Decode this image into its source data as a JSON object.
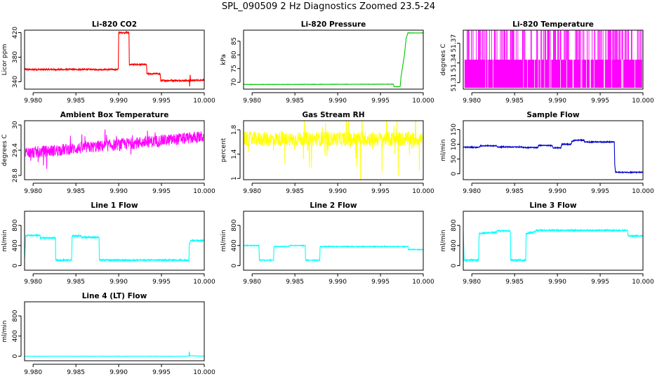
{
  "figure_title": "SPL_090509  2 Hz Diagnostics Zoomed 23.5-24",
  "colors": {
    "red": "#ff0000",
    "green": "#00c800",
    "magenta": "#ff00ff",
    "yellow": "#ffff00",
    "blue": "#0000cc",
    "cyan": "#00ffff"
  },
  "chart_data": [
    {
      "type": "line",
      "title": "Li-820 CO2",
      "ylabel": "Licor ppm",
      "color": "#ff0000",
      "xlim": [
        9.979,
        10.0
      ],
      "ylim": [
        328,
        424
      ],
      "yticks": [
        340,
        380,
        420
      ],
      "xticks": [
        9.98,
        9.985,
        9.99,
        9.995,
        10.0
      ],
      "noise": 1.2,
      "segments": [
        [
          9.979,
          360
        ],
        [
          9.98995,
          360
        ],
        [
          9.99,
          420
        ],
        [
          9.9912,
          420
        ],
        [
          9.99125,
          368
        ],
        [
          9.99325,
          368
        ],
        [
          9.9933,
          353
        ],
        [
          9.99485,
          353
        ],
        [
          9.9949,
          342
        ],
        [
          9.99825,
          342
        ],
        [
          9.9983,
          333
        ],
        [
          9.99835,
          352
        ],
        [
          9.9984,
          342
        ],
        [
          10.0,
          343
        ]
      ]
    },
    {
      "type": "line",
      "title": "Li-820 Pressure",
      "ylabel": "kPa",
      "color": "#00c800",
      "xlim": [
        9.979,
        10.0
      ],
      "ylim": [
        67.5,
        89
      ],
      "yticks": [
        70,
        75,
        80,
        85
      ],
      "xticks": [
        9.98,
        9.985,
        9.99,
        9.995,
        10.0
      ],
      "noise": 0.05,
      "segments": [
        [
          9.979,
          69.2
        ],
        [
          9.9965,
          69.3
        ],
        [
          9.9966,
          68.4
        ],
        [
          9.9973,
          68.4
        ],
        [
          9.9974,
          72
        ],
        [
          9.9978,
          80
        ],
        [
          9.998,
          86
        ],
        [
          9.9982,
          88
        ],
        [
          10.0,
          88
        ]
      ]
    },
    {
      "type": "stripes",
      "title": "Li-820 Temperature",
      "ylabel": "degrees C",
      "color": "#ff00ff",
      "xlim": [
        9.979,
        10.0
      ],
      "ylim": [
        51.3,
        51.39
      ],
      "yticks": [
        51.31,
        51.34,
        51.37
      ],
      "ytick_labels": [
        "51.31",
        "51.34",
        "51.37"
      ],
      "xticks": [
        9.98,
        9.985,
        9.99,
        9.995,
        10.0
      ],
      "band": [
        51.302,
        51.345
      ],
      "full": [
        51.302,
        51.39
      ]
    },
    {
      "type": "noise",
      "title": "Ambient Box Temperature",
      "ylabel": "degrees C",
      "color": "#ff00ff",
      "xlim": [
        9.979,
        10.0
      ],
      "ylim": [
        28.7,
        30.1
      ],
      "yticks": [
        28.8,
        29.4,
        30.0
      ],
      "xticks": [
        9.98,
        9.985,
        9.99,
        9.995,
        10.0
      ],
      "trend": [
        [
          9.979,
          29.33
        ],
        [
          10.0,
          29.72
        ]
      ],
      "amp": 0.14,
      "spike": 0.38
    },
    {
      "type": "noise",
      "title": "Gas Stream RH",
      "ylabel": "percent",
      "color": "#ffff00",
      "xlim": [
        9.979,
        10.0
      ],
      "ylim": [
        0.98,
        1.95
      ],
      "yticks": [
        1.0,
        1.4,
        1.8
      ],
      "xticks": [
        9.98,
        9.985,
        9.99,
        9.995,
        10.0
      ],
      "trend": [
        [
          9.979,
          1.65
        ],
        [
          10.0,
          1.65
        ]
      ],
      "amp": 0.12,
      "spike": 0.6
    },
    {
      "type": "line",
      "title": "Sample Flow",
      "ylabel": "ml/min",
      "color": "#0000cc",
      "xlim": [
        9.979,
        10.0
      ],
      "ylim": [
        -20,
        180
      ],
      "yticks": [
        0,
        50,
        100,
        150
      ],
      "xticks": [
        9.98,
        9.985,
        9.99,
        9.995,
        10.0
      ],
      "noise": 1.5,
      "segments": [
        [
          9.979,
          90
        ],
        [
          9.9809,
          90
        ],
        [
          9.981,
          95
        ],
        [
          9.9829,
          95
        ],
        [
          9.983,
          91
        ],
        [
          9.9859,
          91
        ],
        [
          9.986,
          89
        ],
        [
          9.9877,
          89
        ],
        [
          9.9878,
          96
        ],
        [
          9.9894,
          96
        ],
        [
          9.9895,
          88
        ],
        [
          9.9904,
          88
        ],
        [
          9.9905,
          100
        ],
        [
          9.9916,
          100
        ],
        [
          9.9917,
          110
        ],
        [
          9.9921,
          114
        ],
        [
          9.9931,
          114
        ],
        [
          9.9932,
          108
        ],
        [
          9.99665,
          108
        ],
        [
          9.9967,
          30
        ],
        [
          9.9968,
          5
        ],
        [
          10.0,
          5
        ]
      ]
    },
    {
      "type": "line",
      "title": "Line 1 Flow",
      "ylabel": "ml/min",
      "color": "#00ffff",
      "xlim": [
        9.979,
        10.0
      ],
      "ylim": [
        -90,
        1080
      ],
      "yticks": [
        0,
        400,
        800
      ],
      "xticks": [
        9.98,
        9.985,
        9.99,
        9.995,
        10.0
      ],
      "noise": 14,
      "segments": [
        [
          9.979,
          130
        ],
        [
          9.97915,
          600
        ],
        [
          9.9808,
          600
        ],
        [
          9.98085,
          550
        ],
        [
          9.9826,
          550
        ],
        [
          9.98265,
          110
        ],
        [
          9.9845,
          110
        ],
        [
          9.98455,
          590
        ],
        [
          9.9856,
          590
        ],
        [
          9.98565,
          565
        ],
        [
          9.9877,
          565
        ],
        [
          9.98775,
          110
        ],
        [
          9.9982,
          110
        ],
        [
          9.99825,
          430
        ],
        [
          9.9984,
          500
        ],
        [
          10.0,
          500
        ]
      ]
    },
    {
      "type": "line",
      "title": "Line 2 Flow",
      "ylabel": "ml/min",
      "color": "#00ffff",
      "xlim": [
        9.979,
        10.0
      ],
      "ylim": [
        -90,
        1080
      ],
      "yticks": [
        0,
        400,
        800
      ],
      "xticks": [
        9.98,
        9.985,
        9.99,
        9.995,
        10.0
      ],
      "noise": 7,
      "segments": [
        [
          9.979,
          400
        ],
        [
          9.9808,
          400
        ],
        [
          9.98085,
          110
        ],
        [
          9.9825,
          110
        ],
        [
          9.98255,
          380
        ],
        [
          9.9843,
          380
        ],
        [
          9.98435,
          400
        ],
        [
          9.9862,
          400
        ],
        [
          9.98625,
          110
        ],
        [
          9.9879,
          110
        ],
        [
          9.98795,
          380
        ],
        [
          9.9982,
          380
        ],
        [
          9.99825,
          320
        ],
        [
          10.0,
          320
        ]
      ]
    },
    {
      "type": "line",
      "title": "Line 3 Flow",
      "ylabel": "ml/min",
      "color": "#00ffff",
      "xlim": [
        9.979,
        10.0
      ],
      "ylim": [
        -90,
        1080
      ],
      "yticks": [
        0,
        400,
        800
      ],
      "xticks": [
        9.98,
        9.985,
        9.99,
        9.995,
        10.0
      ],
      "noise": 14,
      "segments": [
        [
          9.979,
          680
        ],
        [
          9.9791,
          110
        ],
        [
          9.9808,
          110
        ],
        [
          9.98085,
          640
        ],
        [
          9.9829,
          660
        ],
        [
          9.98295,
          690
        ],
        [
          9.9845,
          690
        ],
        [
          9.98455,
          110
        ],
        [
          9.9863,
          110
        ],
        [
          9.98635,
          640
        ],
        [
          9.9874,
          670
        ],
        [
          9.98745,
          700
        ],
        [
          9.9982,
          700
        ],
        [
          9.99825,
          590
        ],
        [
          10.0,
          590
        ]
      ]
    },
    {
      "type": "line",
      "title": "Line 4 (LT) Flow",
      "ylabel": "ml/min",
      "color": "#00ffff",
      "xlim": [
        9.979,
        10.0
      ],
      "ylim": [
        -90,
        1080
      ],
      "yticks": [
        0,
        400,
        800
      ],
      "xticks": [
        9.98,
        9.985,
        9.99,
        9.995,
        10.0
      ],
      "noise": 2,
      "segments": [
        [
          9.979,
          0
        ],
        [
          9.9982,
          0
        ],
        [
          9.99825,
          90
        ],
        [
          9.9983,
          10
        ],
        [
          10.0,
          0
        ]
      ]
    }
  ]
}
